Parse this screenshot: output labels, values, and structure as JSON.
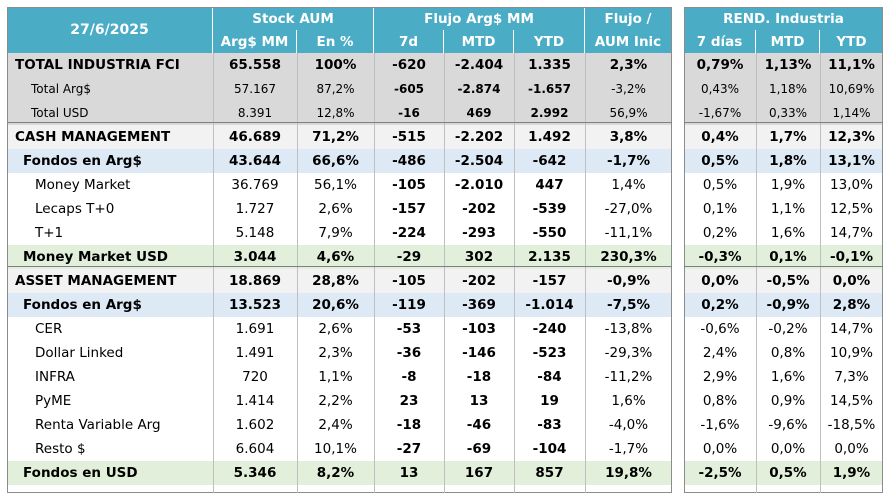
{
  "header": {
    "date": "27/6/2025",
    "group_stock": "Stock AUM",
    "group_flujo": "Flujo Arg$ MM",
    "group_flujo_aum": "Flujo /",
    "group_flujo_aum2": "AUM Inic",
    "group_rend": "REND. Industria",
    "col_argmm": "Arg$ MM",
    "col_pct": "En %",
    "col_7d": "7d",
    "col_mtd": "MTD",
    "col_ytd": "YTD",
    "col_7dias": "7 días",
    "col_rmtd": "MTD",
    "col_rytd": "YTD"
  },
  "rows": [
    {
      "label": "TOTAL INDUSTRIA FCI",
      "argmm": "65.558",
      "pct": "100%",
      "f7d": "-620",
      "fmtd": "-2.404",
      "fytd": "1.335",
      "faum": "2,3%",
      "r7": "0,79%",
      "rmtd": "1,13%",
      "rytd": "11,1%"
    },
    {
      "label": "Total Arg$",
      "argmm": "57.167",
      "pct": "87,2%",
      "f7d": "-605",
      "fmtd": "-2.874",
      "fytd": "-1.657",
      "faum": "-3,2%",
      "r7": "0,43%",
      "rmtd": "1,18%",
      "rytd": "10,69%"
    },
    {
      "label": "Total USD",
      "argmm": "8.391",
      "pct": "12,8%",
      "f7d": "-16",
      "fmtd": "469",
      "fytd": "2.992",
      "faum": "56,9%",
      "r7": "-1,67%",
      "rmtd": "0,33%",
      "rytd": "1,14%"
    },
    {
      "label": "CASH MANAGEMENT",
      "argmm": "46.689",
      "pct": "71,2%",
      "f7d": "-515",
      "fmtd": "-2.202",
      "fytd": "1.492",
      "faum": "3,8%",
      "r7": "0,4%",
      "rmtd": "1,7%",
      "rytd": "12,3%"
    },
    {
      "label": "Fondos en Arg$",
      "argmm": "43.644",
      "pct": "66,6%",
      "f7d": "-486",
      "fmtd": "-2.504",
      "fytd": "-642",
      "faum": "-1,7%",
      "r7": "0,5%",
      "rmtd": "1,8%",
      "rytd": "13,1%"
    },
    {
      "label": "Money Market",
      "argmm": "36.769",
      "pct": "56,1%",
      "f7d": "-105",
      "fmtd": "-2.010",
      "fytd": "447",
      "faum": "1,4%",
      "r7": "0,5%",
      "rmtd": "1,9%",
      "rytd": "13,0%"
    },
    {
      "label": "Lecaps T+0",
      "argmm": "1.727",
      "pct": "2,6%",
      "f7d": "-157",
      "fmtd": "-202",
      "fytd": "-539",
      "faum": "-27,0%",
      "r7": "0,1%",
      "rmtd": "1,1%",
      "rytd": "12,5%"
    },
    {
      "label": "T+1",
      "argmm": "5.148",
      "pct": "7,9%",
      "f7d": "-224",
      "fmtd": "-293",
      "fytd": "-550",
      "faum": "-11,1%",
      "r7": "0,2%",
      "rmtd": "1,6%",
      "rytd": "14,7%"
    },
    {
      "label": "Money Market USD",
      "argmm": "3.044",
      "pct": "4,6%",
      "f7d": "-29",
      "fmtd": "302",
      "fytd": "2.135",
      "faum": "230,3%",
      "r7": "-0,3%",
      "rmtd": "0,1%",
      "rytd": "-0,1%"
    },
    {
      "label": "ASSET MANAGEMENT",
      "argmm": "18.869",
      "pct": "28,8%",
      "f7d": "-105",
      "fmtd": "-202",
      "fytd": "-157",
      "faum": "-0,9%",
      "r7": "0,0%",
      "rmtd": "-0,5%",
      "rytd": "0,0%"
    },
    {
      "label": "Fondos en Arg$",
      "argmm": "13.523",
      "pct": "20,6%",
      "f7d": "-119",
      "fmtd": "-369",
      "fytd": "-1.014",
      "faum": "-7,5%",
      "r7": "0,2%",
      "rmtd": "-0,9%",
      "rytd": "2,8%"
    },
    {
      "label": "CER",
      "argmm": "1.691",
      "pct": "2,6%",
      "f7d": "-53",
      "fmtd": "-103",
      "fytd": "-240",
      "faum": "-13,8%",
      "r7": "-0,6%",
      "rmtd": "-0,2%",
      "rytd": "14,7%"
    },
    {
      "label": "Dollar Linked",
      "argmm": "1.491",
      "pct": "2,3%",
      "f7d": "-36",
      "fmtd": "-146",
      "fytd": "-523",
      "faum": "-29,3%",
      "r7": "2,4%",
      "rmtd": "0,8%",
      "rytd": "10,9%"
    },
    {
      "label": "INFRA",
      "argmm": "720",
      "pct": "1,1%",
      "f7d": "-8",
      "fmtd": "-18",
      "fytd": "-84",
      "faum": "-11,2%",
      "r7": "2,9%",
      "rmtd": "1,6%",
      "rytd": "7,3%"
    },
    {
      "label": "PyME",
      "argmm": "1.414",
      "pct": "2,2%",
      "f7d": "23",
      "fmtd": "13",
      "fytd": "19",
      "faum": "1,6%",
      "r7": "0,8%",
      "rmtd": "0,9%",
      "rytd": "14,5%"
    },
    {
      "label": "Renta Variable Arg",
      "argmm": "1.602",
      "pct": "2,4%",
      "f7d": "-18",
      "fmtd": "-46",
      "fytd": "-83",
      "faum": "-4,0%",
      "r7": "-1,6%",
      "rmtd": "-9,6%",
      "rytd": "-18,5%"
    },
    {
      "label": "Resto $",
      "argmm": "6.604",
      "pct": "10,1%",
      "f7d": "-27",
      "fmtd": "-69",
      "fytd": "-104",
      "faum": "-1,7%",
      "r7": "0,0%",
      "rmtd": "0,0%",
      "rytd": "0,0%"
    },
    {
      "label": "Fondos en USD",
      "argmm": "5.346",
      "pct": "8,2%",
      "f7d": "13",
      "fmtd": "167",
      "fytd": "857",
      "faum": "19,8%",
      "r7": "-2,5%",
      "rmtd": "0,5%",
      "rytd": "1,9%"
    }
  ]
}
